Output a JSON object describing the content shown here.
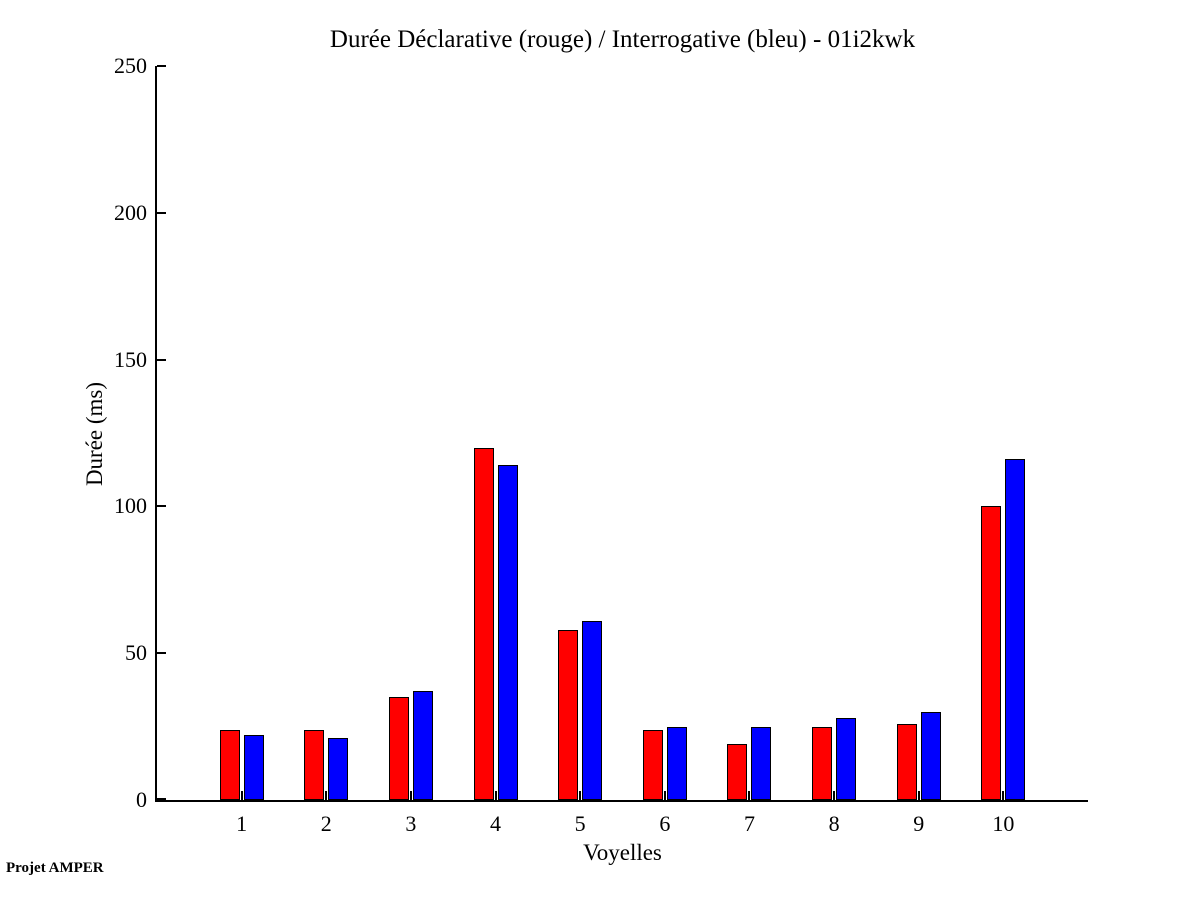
{
  "title": "Durée Déclarative (rouge) / Interrogative (bleu) - 01i2kwk",
  "footer": {
    "note": "Projet AMPER"
  },
  "chart_data": {
    "type": "bar",
    "title": "Durée Déclarative (rouge) / Interrogative (bleu) - 01i2kwk",
    "xlabel": "Voyelles",
    "ylabel": "Durée (ms)",
    "categories": [
      "1",
      "2",
      "3",
      "4",
      "5",
      "6",
      "7",
      "8",
      "9",
      "10"
    ],
    "series": [
      {
        "name": "Déclarative (rouge)",
        "color": "#ff0000",
        "values": [
          24,
          24,
          35,
          120,
          58,
          24,
          19,
          25,
          26,
          100
        ]
      },
      {
        "name": "Interrogative (bleu)",
        "color": "#0000ff",
        "values": [
          22,
          21,
          37,
          114,
          61,
          25,
          25,
          28,
          30,
          116
        ]
      }
    ],
    "ylim": [
      0,
      250
    ],
    "yticks": [
      0,
      50,
      100,
      150,
      200,
      250
    ],
    "xlim": [
      0,
      11
    ],
    "grid": false,
    "legend_position": "none",
    "axis_color": "#000000",
    "bar_edge_color": "#000000",
    "background_color": "#ffffff"
  }
}
